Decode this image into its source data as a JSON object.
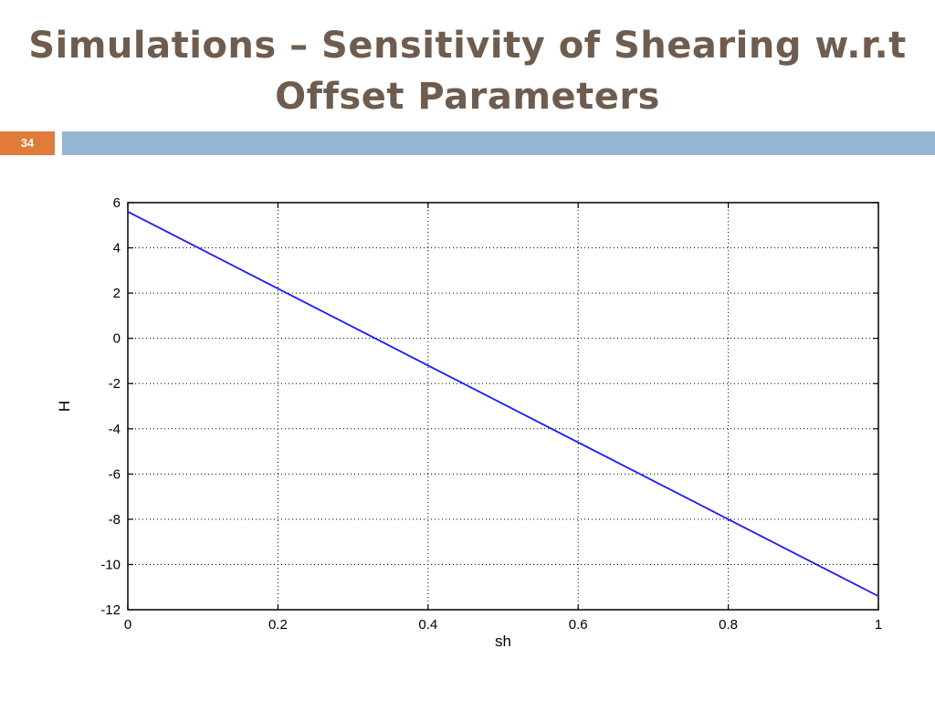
{
  "slide": {
    "title_line1": "Simulations – Sensitivity of Shearing w.r.t",
    "title_line2": "Offset Parameters",
    "page_number": "34",
    "accent_color": "#e07b39",
    "bar_color": "#94b6d2",
    "title_color": "#6e5d4f"
  },
  "chart_data": {
    "type": "line",
    "title": "",
    "xlabel": "sh",
    "ylabel": "H",
    "xlim": [
      0,
      1
    ],
    "ylim": [
      -12,
      6
    ],
    "x_ticks": [
      0,
      0.2,
      0.4,
      0.6,
      0.8,
      1
    ],
    "x_tick_labels": [
      "0",
      "0.2",
      "0.4",
      "0.6",
      "0.8",
      "1"
    ],
    "y_ticks": [
      6,
      4,
      2,
      0,
      -2,
      -4,
      -6,
      -8,
      -10,
      -12
    ],
    "y_tick_labels": [
      "6",
      "4",
      "2",
      "0",
      "-2",
      "-4",
      "-6",
      "-8",
      "-10",
      "-12"
    ],
    "grid": true,
    "series": [
      {
        "color": "#1a1aff",
        "x": [
          0,
          0.2,
          0.4,
          0.6,
          0.8,
          1
        ],
        "y": [
          5.6,
          2.2,
          -1.2,
          -4.6,
          -8.0,
          -11.4
        ]
      }
    ]
  }
}
